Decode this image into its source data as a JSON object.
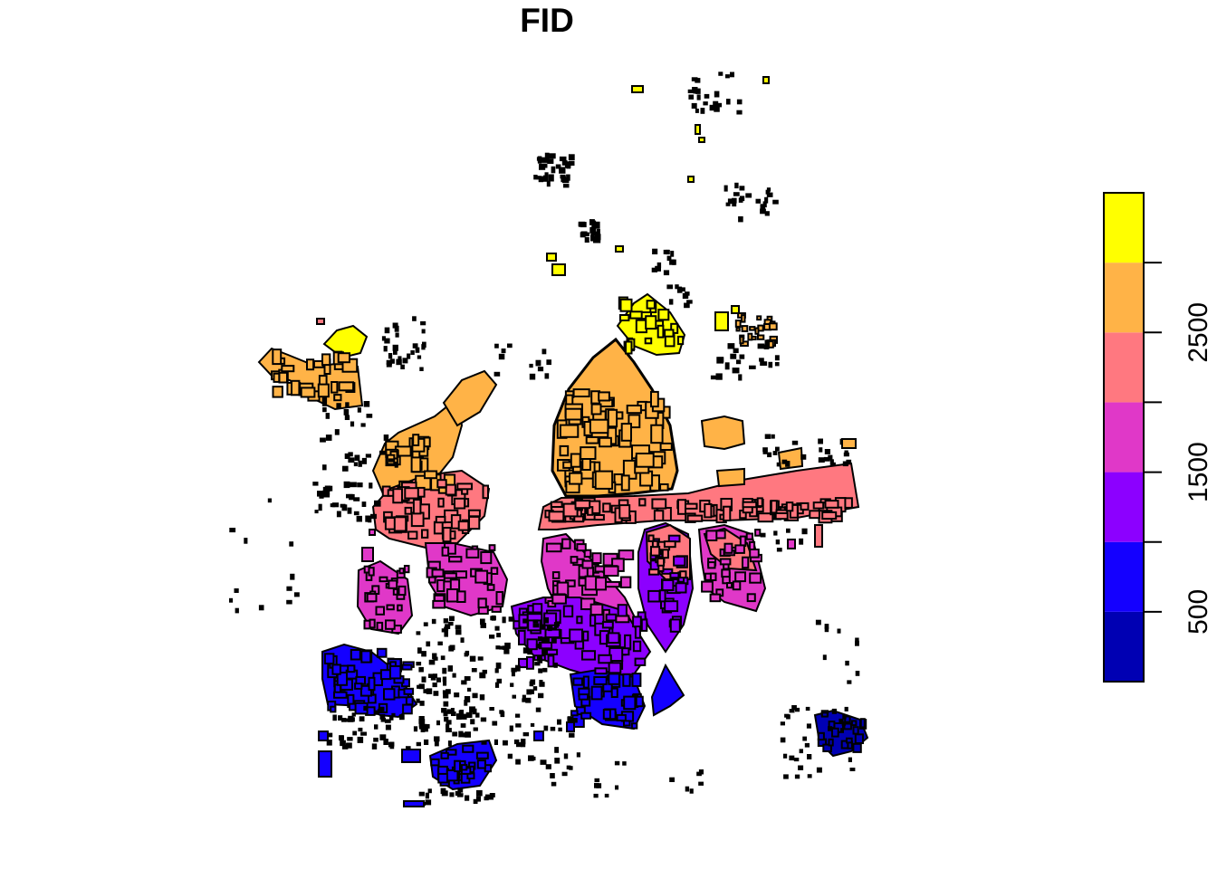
{
  "map": {
    "title": "FID",
    "attribute": "FID",
    "feature_type": "building-footprints"
  },
  "legend": {
    "type": "continuous-colorbar",
    "breaks": [
      0,
      500,
      1000,
      1500,
      2000,
      2500,
      3000,
      3500
    ],
    "colors": [
      "#0000B3",
      "#1400FF",
      "#8C00FF",
      "#E038C8",
      "#FF7880",
      "#FFB347",
      "#FFFF00"
    ],
    "ticks": [
      {
        "value": 500,
        "label": "500"
      },
      {
        "value": 1000,
        "label": ""
      },
      {
        "value": 1500,
        "label": "1500"
      },
      {
        "value": 2000,
        "label": ""
      },
      {
        "value": 2500,
        "label": "2500"
      },
      {
        "value": 3000,
        "label": ""
      }
    ]
  }
}
